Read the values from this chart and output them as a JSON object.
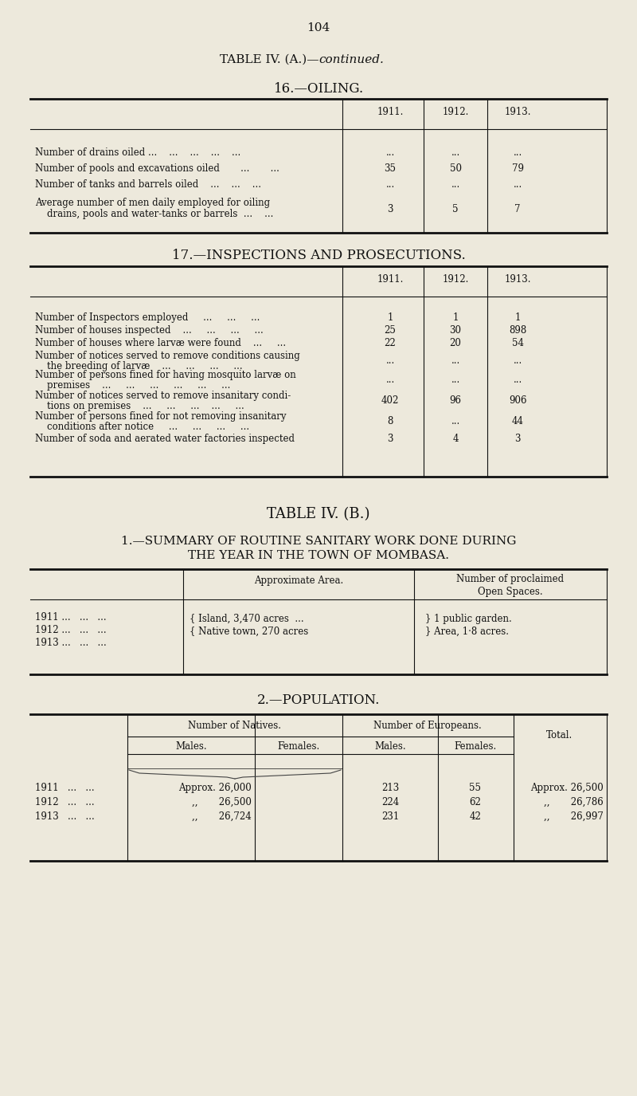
{
  "bg_color": "#ede9dc",
  "text_color": "#111111",
  "page_number": "104",
  "sec16_title": "16.—OILING.",
  "sec17_title": "17.—INSPECTIONS AND PROSECUTIONS.",
  "table_b_title": "TABLE IV. (B.)",
  "sec1_title_line1": "1.—SUMMARY OF ROUTINE SANITARY WORK DONE DURING",
  "sec1_title_line2": "THE YEAR IN THE TOWN OF MOMBASA.",
  "sec2_title": "2.—POPULATION.",
  "years": [
    "1911.",
    "1912.",
    "1913."
  ],
  "sec16_rows": [
    {
      "label": "Number of drains oiled ...    ...    ...    ...    ...",
      "cont": null,
      "v1": "...",
      "v2": "...",
      "v3": "..."
    },
    {
      "label": "Number of pools and excavations oiled       ...       ...",
      "cont": null,
      "v1": "35",
      "v2": "50",
      "v3": "79"
    },
    {
      "label": "Number of tanks and barrels oiled    ...    ...    ...",
      "cont": null,
      "v1": "...",
      "v2": "...",
      "v3": "..."
    },
    {
      "label": "Average number of men daily employed for oiling",
      "cont": "    drains, pools and water-tanks or barrels  ...    ...",
      "v1": "3",
      "v2": "5",
      "v3": "7"
    }
  ],
  "sec17_rows": [
    {
      "label": "Number of Inspectors employed     ...     ...     ...",
      "cont": null,
      "v1": "1",
      "v2": "1",
      "v3": "1"
    },
    {
      "label": "Number of houses inspected    ...     ...     ...     ...",
      "cont": null,
      "v1": "25",
      "v2": "30",
      "v3": "898"
    },
    {
      "label": "Number of houses where larvæ were found    ...     ...",
      "cont": null,
      "v1": "22",
      "v2": "20",
      "v3": "54"
    },
    {
      "label": "Number of notices served to remove conditions causing",
      "cont": "    the breeding of larvæ    ...     ...     ...     ...",
      "v1": "...",
      "v2": "...",
      "v3": "..."
    },
    {
      "label": "Number of persons fined for having mosquito larvæ on",
      "cont": "    premises    ...     ...     ...     ...     ...     ...",
      "v1": "...",
      "v2": "...",
      "v3": "..."
    },
    {
      "label": "Number of notices served to remove insanitary condi-",
      "cont": "    tions on premises    ...     ...     ...    ...     ...",
      "v1": "402",
      "v2": "96",
      "v3": "906"
    },
    {
      "label": "Number of persons fined for not removing insanitary",
      "cont": "    conditions after notice     ...     ...     ...     ...",
      "v1": "8",
      "v2": "...",
      "v3": "44"
    },
    {
      "label": "Number of soda and aerated water factories inspected",
      "cont": null,
      "v1": "3",
      "v2": "4",
      "v3": "3"
    }
  ],
  "sec1_years": [
    "1911 ...   ...   ...",
    "1912 ...   ...   ...",
    "1913 ...   ...   ..."
  ],
  "sec1_area_line1": "{ Island, 3,470 acres  ...",
  "sec1_area_line2": "{ Native town, 270 acres",
  "sec1_spaces_line1": "} 1 public garden.",
  "sec1_spaces_line2": "} Area, 1·8 acres.",
  "pop_rows": [
    {
      "year": "1911   ...   ...",
      "nm": "Approx. 26,000",
      "em": "213",
      "ef": "55",
      "total": "Approx. 26,500"
    },
    {
      "year": "1912   ...   ...",
      "nm": ",,       26,500",
      "em": "224",
      "ef": "62",
      "total": ",,       26,786"
    },
    {
      "year": "1913   ...   ...",
      "nm": ",,       26,724",
      "em": "231",
      "ef": "42",
      "total": ",,       26,997"
    }
  ]
}
